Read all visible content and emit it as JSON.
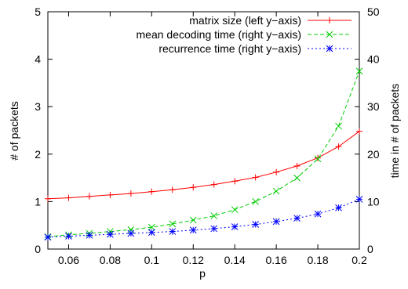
{
  "chart_data": {
    "type": "line",
    "title": "",
    "xlabel": "p",
    "ylabel_left": "# of packets",
    "ylabel_right": "time in # of packets",
    "xlim": [
      0.05,
      0.2
    ],
    "ylim_left": [
      0,
      5
    ],
    "ylim_right": [
      0,
      50
    ],
    "x_ticks": [
      0.06,
      0.08,
      0.1,
      0.12,
      0.14,
      0.16,
      0.18,
      0.2
    ],
    "x_tick_labels": [
      "0.06",
      "0.08",
      "0.1",
      "0.12",
      "0.14",
      "0.16",
      "0.18",
      "0.2"
    ],
    "y_left_ticks": [
      0,
      1,
      2,
      3,
      4,
      5
    ],
    "y_left_tick_labels": [
      "0",
      "1",
      "2",
      "3",
      "4",
      "5"
    ],
    "y_right_ticks": [
      0,
      10,
      20,
      30,
      40,
      50
    ],
    "y_right_tick_labels": [
      "0",
      "10",
      "20",
      "30",
      "40",
      "50"
    ],
    "grid": false,
    "legend_position": "top-right",
    "x": [
      0.05,
      0.06,
      0.07,
      0.08,
      0.09,
      0.1,
      0.11,
      0.12,
      0.13,
      0.14,
      0.15,
      0.16,
      0.17,
      0.18,
      0.19,
      0.2
    ],
    "series": [
      {
        "name": "matrix size (left y−axis)",
        "axis": "left",
        "color": "#ff0000",
        "marker": "plus",
        "dash": "solid",
        "values": [
          1.06,
          1.08,
          1.11,
          1.14,
          1.17,
          1.21,
          1.25,
          1.3,
          1.36,
          1.43,
          1.51,
          1.62,
          1.75,
          1.92,
          2.16,
          2.48
        ]
      },
      {
        "name": "mean decoding time (right y−axis)",
        "axis": "right",
        "color": "#00cc00",
        "marker": "cross",
        "dash": "dashed",
        "values": [
          2.6,
          3.0,
          3.3,
          3.7,
          4.1,
          4.6,
          5.3,
          6.1,
          7.0,
          8.3,
          10.0,
          12.2,
          15.0,
          19.0,
          25.9,
          37.5
        ]
      },
      {
        "name": "recurrence time (right y−axis)",
        "axis": "right",
        "color": "#0000ff",
        "marker": "star",
        "dash": "dotted",
        "values": [
          2.5,
          2.7,
          2.9,
          3.1,
          3.3,
          3.5,
          3.7,
          4.0,
          4.3,
          4.7,
          5.2,
          5.8,
          6.5,
          7.4,
          8.7,
          10.5
        ]
      }
    ]
  }
}
